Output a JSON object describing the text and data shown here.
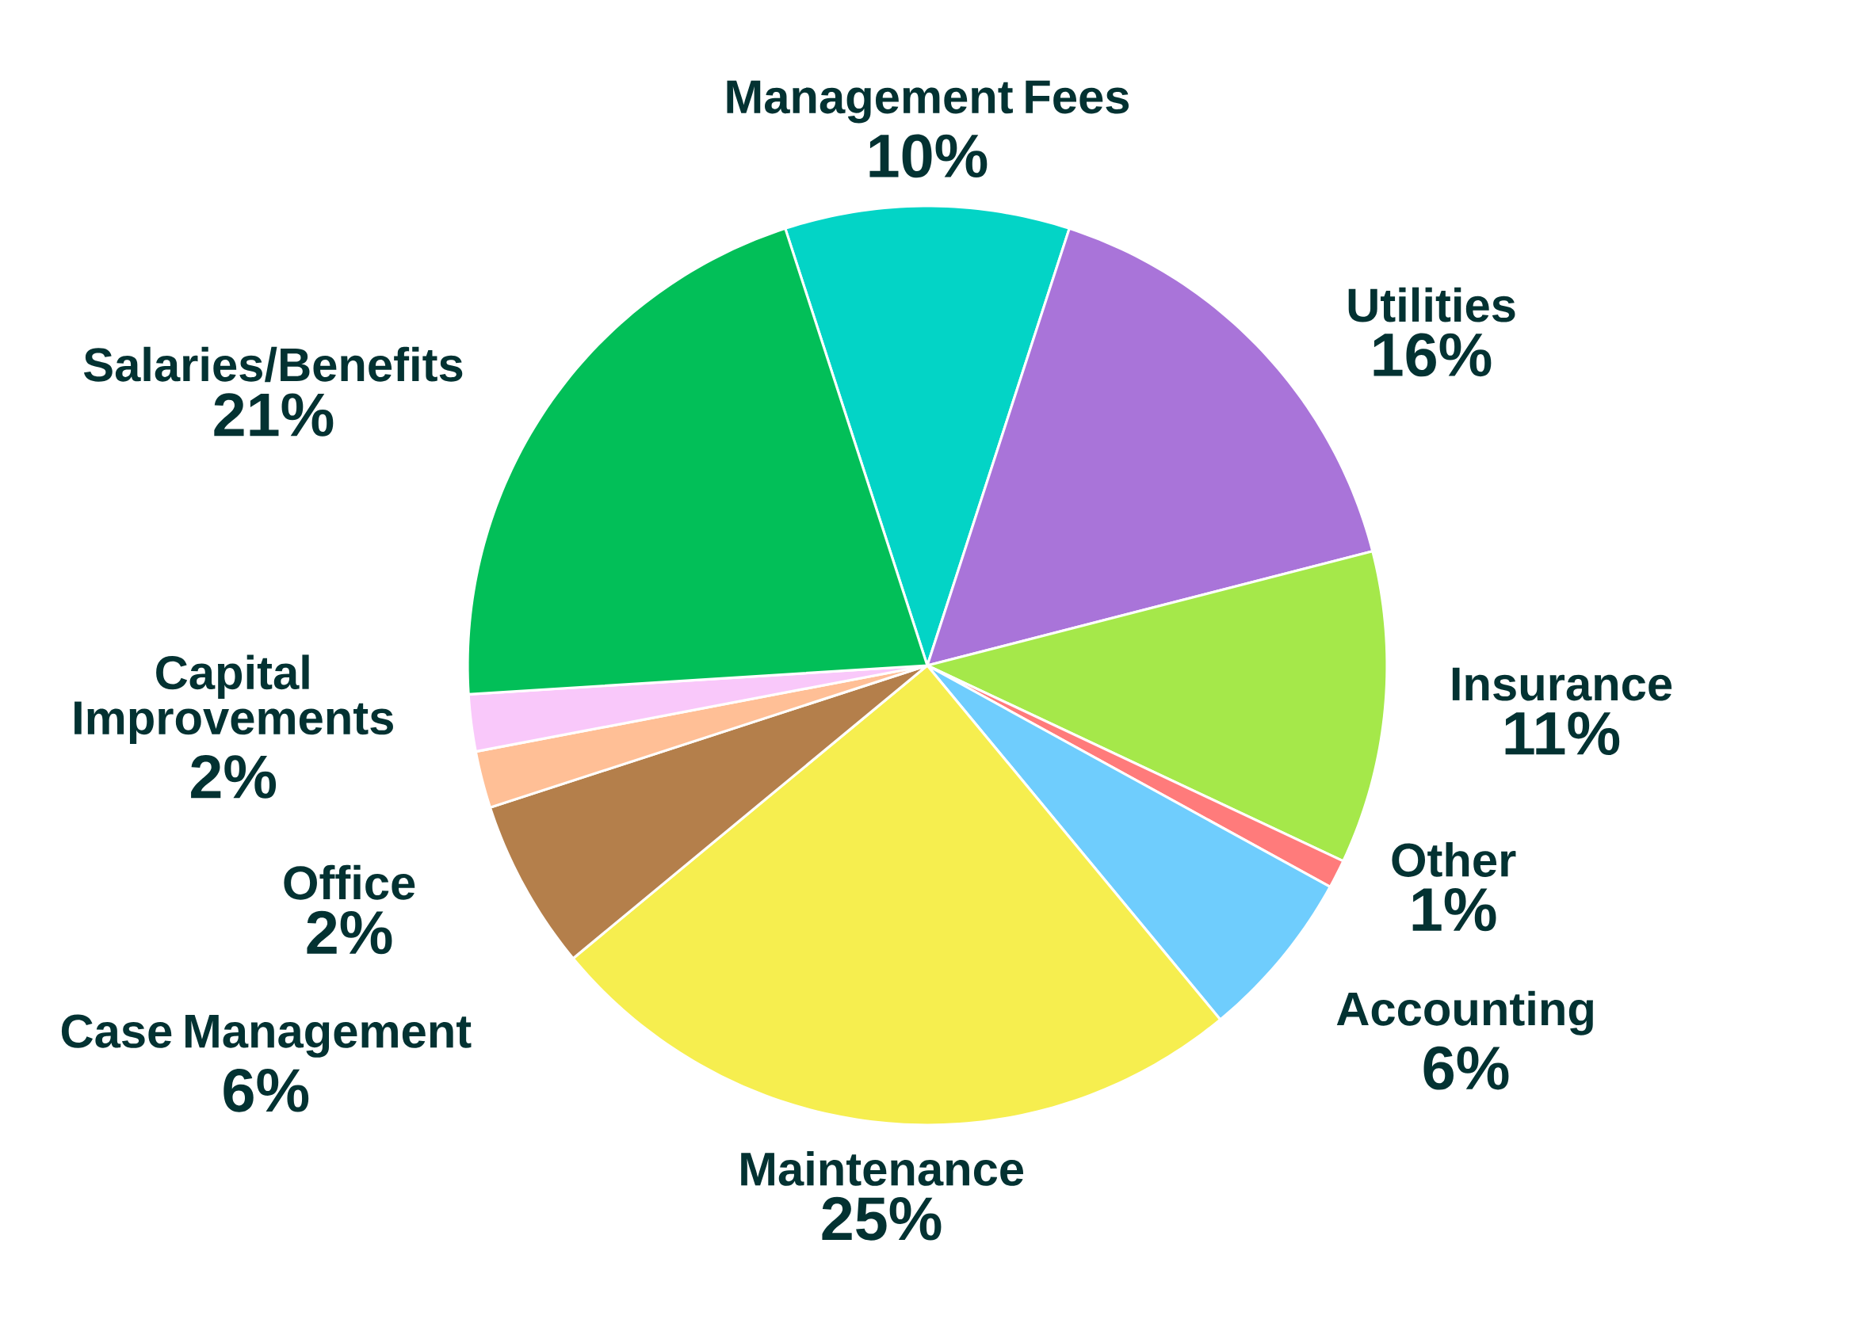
{
  "chart_data": {
    "type": "pie",
    "categories": [
      "Management Fees",
      "Utilities",
      "Insurance",
      "Other",
      "Accounting",
      "Maintenance",
      "Case Management",
      "Office",
      "Capital Improvements",
      "Salaries/Benefits"
    ],
    "values": [
      10,
      16,
      11,
      1,
      6,
      25,
      6,
      2,
      2,
      21
    ],
    "value_labels": [
      "10%",
      "16%",
      "11%",
      "1%",
      "6%",
      "25%",
      "6%",
      "2%",
      "2%",
      "21%"
    ],
    "colors": [
      "#03d4c6",
      "#a974d9",
      "#a5e84a",
      "#ff7b7b",
      "#6fcdfd",
      "#f6ee4f",
      "#b47f4b",
      "#ffbf96",
      "#f9c8fa",
      "#02bf58"
    ]
  }
}
